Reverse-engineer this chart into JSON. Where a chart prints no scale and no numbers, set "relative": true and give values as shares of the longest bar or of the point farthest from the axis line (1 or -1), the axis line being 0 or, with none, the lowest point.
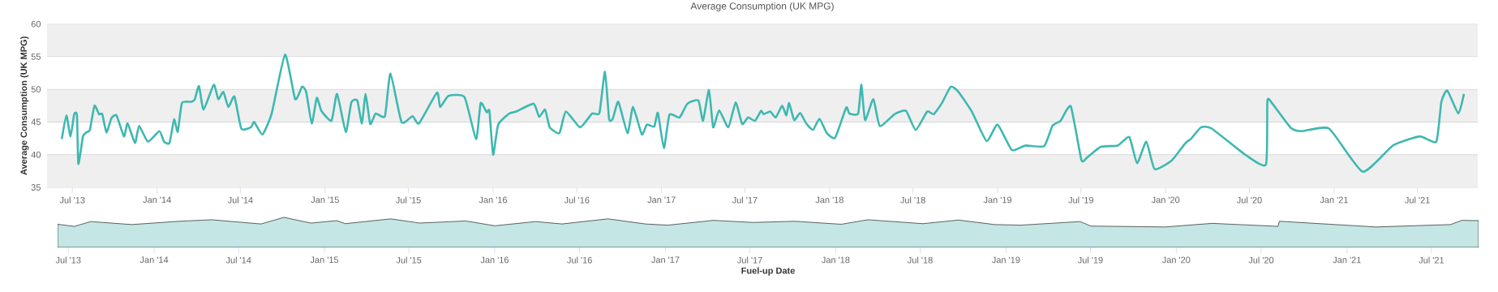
{
  "chart_data": [
    {
      "type": "line",
      "title": "Average Consumption (UK MPG)",
      "ylabel": "Average Consumption (UK MPG)",
      "x": [
        "2013-06-08",
        "2013-06-18",
        "2013-06-27",
        "2013-07-05",
        "2013-07-11",
        "2013-07-14",
        "2013-07-24",
        "2013-07-31",
        "2013-08-08",
        "2013-08-18",
        "2013-08-28",
        "2013-09-04",
        "2013-09-13",
        "2013-09-24",
        "2013-10-05",
        "2013-10-21",
        "2013-10-29",
        "2013-11-14",
        "2013-11-23",
        "2013-12-12",
        "2014-01-06",
        "2014-01-16",
        "2014-01-28",
        "2014-02-07",
        "2014-02-15",
        "2014-02-24",
        "2014-03-17",
        "2014-03-24",
        "2014-04-02",
        "2014-04-12",
        "2014-05-04",
        "2014-05-14",
        "2014-05-25",
        "2014-06-05",
        "2014-06-18",
        "2014-07-03",
        "2014-07-24",
        "2014-07-31",
        "2014-08-18",
        "2014-09-07",
        "2014-10-06",
        "2014-10-28",
        "2014-11-12",
        "2014-11-21",
        "2014-12-03",
        "2014-12-14",
        "2014-12-24",
        "2015-01-15",
        "2015-01-27",
        "2015-02-15",
        "2015-02-27",
        "2015-03-12",
        "2015-03-22",
        "2015-03-30",
        "2015-04-09",
        "2015-04-21",
        "2015-05-11",
        "2015-05-23",
        "2015-06-16",
        "2015-07-10",
        "2015-07-24",
        "2015-09-01",
        "2015-09-08",
        "2015-09-26",
        "2015-10-31",
        "2015-11-25",
        "2015-12-05",
        "2015-12-18",
        "2015-12-24",
        "2016-01-01",
        "2016-01-12",
        "2016-02-05",
        "2016-02-20",
        "2016-03-29",
        "2016-04-10",
        "2016-04-23",
        "2016-05-03",
        "2016-05-24",
        "2016-06-07",
        "2016-07-08",
        "2016-08-03",
        "2016-08-19",
        "2016-08-31",
        "2016-09-09",
        "2016-09-17",
        "2016-09-29",
        "2016-10-19",
        "2016-10-31",
        "2016-11-19",
        "2016-11-30",
        "2016-12-16",
        "2016-12-24",
        "2017-01-06",
        "2017-01-18",
        "2017-02-09",
        "2017-02-26",
        "2017-03-22",
        "2017-04-01",
        "2017-04-14",
        "2017-04-23",
        "2017-05-06",
        "2017-05-26",
        "2017-06-11",
        "2017-06-25",
        "2017-07-08",
        "2017-07-23",
        "2017-08-05",
        "2017-08-11",
        "2017-08-25",
        "2017-09-06",
        "2017-09-20",
        "2017-09-29",
        "2017-10-05",
        "2017-10-16",
        "2017-10-29",
        "2017-11-11",
        "2017-11-26",
        "2017-12-10",
        "2017-12-26",
        "2018-01-13",
        "2018-02-06",
        "2018-02-13",
        "2018-03-04",
        "2018-03-11",
        "2018-03-19",
        "2018-04-06",
        "2018-04-20",
        "2018-05-22",
        "2018-06-16",
        "2018-07-07",
        "2018-08-01",
        "2018-08-15",
        "2018-09-02",
        "2018-09-21",
        "2018-10-07",
        "2018-11-06",
        "2018-12-08",
        "2019-01-01",
        "2019-02-01",
        "2019-03-02",
        "2019-04-12",
        "2019-04-30",
        "2019-05-18",
        "2019-06-09",
        "2019-07-02",
        "2019-07-15",
        "2019-08-13",
        "2019-09-19",
        "2019-10-14",
        "2019-10-31",
        "2019-11-20",
        "2019-12-08",
        "2020-01-14",
        "2020-02-12",
        "2020-02-26",
        "2020-03-18",
        "2020-04-10",
        "2020-06-22",
        "2020-08-06",
        "2020-08-09",
        "2020-08-19",
        "2020-09-29",
        "2020-10-24",
        "2020-12-21",
        "2021-03-04",
        "2021-05-09",
        "2021-07-06",
        "2021-08-11",
        "2021-08-22",
        "2021-09-04",
        "2021-09-28",
        "2021-10-10"
      ],
      "series": [
        {
          "color": "#3db8b0",
          "values": [
            42.4,
            46.0,
            42.8,
            46.2,
            46.0,
            38.6,
            42.8,
            43.4,
            43.8,
            47.5,
            46.2,
            46.2,
            43.4,
            45.6,
            46.0,
            42.8,
            44.8,
            41.8,
            44.4,
            42.0,
            43.6,
            42.0,
            41.8,
            45.4,
            43.5,
            47.9,
            48.1,
            48.5,
            50.5,
            46.9,
            50.7,
            48.5,
            49.6,
            47.3,
            48.9,
            44.0,
            44.2,
            45.0,
            43.1,
            46.3,
            55.3,
            48.5,
            50.4,
            49.6,
            44.8,
            48.7,
            46.7,
            45.2,
            49.3,
            43.5,
            48.0,
            48.3,
            44.8,
            49.3,
            44.7,
            46.3,
            45.9,
            52.4,
            45.0,
            45.9,
            44.8,
            49.5,
            47.3,
            49.0,
            48.8,
            42.4,
            47.9,
            46.5,
            46.7,
            40.0,
            44.6,
            46.3,
            46.6,
            47.8,
            45.8,
            46.9,
            44.2,
            43.3,
            46.6,
            44.2,
            46.3,
            46.4,
            52.7,
            45.5,
            45.5,
            48.1,
            43.3,
            47.3,
            43.1,
            44.6,
            44.3,
            46.4,
            41.0,
            46.1,
            45.7,
            47.8,
            48.3,
            45.2,
            49.9,
            44.2,
            46.8,
            44.2,
            48.0,
            44.7,
            45.7,
            45.2,
            46.7,
            46.2,
            46.6,
            45.7,
            47.5,
            46.0,
            47.9,
            45.3,
            46.4,
            44.8,
            43.8,
            45.5,
            43.3,
            42.6,
            47.2,
            46.3,
            46.3,
            50.7,
            45.3,
            48.5,
            44.4,
            46.2,
            46.7,
            43.8,
            46.6,
            46.2,
            47.9,
            50.4,
            49.7,
            46.6,
            42.1,
            44.6,
            40.7,
            41.4,
            41.3,
            44.4,
            45.2,
            47.4,
            39.2,
            39.6,
            41.2,
            41.4,
            42.7,
            38.7,
            42.0,
            37.8,
            39.1,
            41.7,
            42.5,
            44.2,
            44.0,
            40.0,
            38.5,
            48.2,
            47.9,
            44.1,
            43.6,
            44.0,
            37.4,
            41.4,
            42.8,
            42.0,
            48.1,
            49.8,
            46.3,
            49.3
          ]
        }
      ],
      "xlim": [
        "2013-05-07",
        "2021-11-09"
      ],
      "ylim": [
        35,
        60
      ],
      "yticks": [
        35,
        40,
        45,
        50,
        55,
        60
      ],
      "xticks": [
        {
          "value": "2013-07-01",
          "label": "Jul '13"
        },
        {
          "value": "2014-01-01",
          "label": "Jan '14"
        },
        {
          "value": "2014-07-01",
          "label": "Jul '14"
        },
        {
          "value": "2015-01-01",
          "label": "Jan '15"
        },
        {
          "value": "2015-07-01",
          "label": "Jul '15"
        },
        {
          "value": "2016-01-01",
          "label": "Jan '16"
        },
        {
          "value": "2016-07-01",
          "label": "Jul '16"
        },
        {
          "value": "2017-01-01",
          "label": "Jan '17"
        },
        {
          "value": "2017-07-01",
          "label": "Jul '17"
        },
        {
          "value": "2018-01-01",
          "label": "Jan '18"
        },
        {
          "value": "2018-07-01",
          "label": "Jul '18"
        },
        {
          "value": "2019-01-01",
          "label": "Jan '19"
        },
        {
          "value": "2019-07-01",
          "label": "Jul '19"
        },
        {
          "value": "2020-01-01",
          "label": "Jan '20"
        },
        {
          "value": "2020-07-01",
          "label": "Jul '20"
        },
        {
          "value": "2021-01-01",
          "label": "Jan '21"
        },
        {
          "value": "2021-07-01",
          "label": "Jul '21"
        }
      ],
      "grid": "y",
      "bands": [
        {
          "axis": "y",
          "from": 35,
          "to": 40,
          "color": "#efefef"
        },
        {
          "axis": "y",
          "from": 45,
          "to": 50,
          "color": "#efefef"
        },
        {
          "axis": "y",
          "from": 55,
          "to": 60,
          "color": "#efefef"
        }
      ]
    },
    {
      "type": "area",
      "xlabel": "Fuel-up Date",
      "relative": true,
      "tick_labels": "x",
      "color": "#c4e6e4",
      "x": [
        "2013-06-08",
        "2013-07-14",
        "2013-08-18",
        "2013-11-14",
        "2014-02-24",
        "2014-05-04",
        "2014-08-18",
        "2014-10-06",
        "2014-12-03",
        "2015-01-27",
        "2015-02-15",
        "2015-05-23",
        "2015-07-24",
        "2015-10-31",
        "2016-01-01",
        "2016-03-29",
        "2016-05-24",
        "2016-08-31",
        "2016-11-19",
        "2017-01-06",
        "2017-04-14",
        "2017-07-08",
        "2017-10-05",
        "2018-01-13",
        "2018-03-11",
        "2018-07-07",
        "2018-09-21",
        "2018-12-08",
        "2019-02-01",
        "2019-06-09",
        "2019-07-02",
        "2019-12-08",
        "2020-03-18",
        "2020-08-06",
        "2020-08-09",
        "2021-03-04",
        "2021-08-11",
        "2021-09-04",
        "2021-10-10"
      ],
      "values": [
        0.77,
        0.7,
        0.86,
        0.76,
        0.87,
        0.92,
        0.78,
        1,
        0.81,
        0.89,
        0.79,
        0.95,
        0.81,
        0.88,
        0.72,
        0.86,
        0.78,
        0.95,
        0.78,
        0.74,
        0.9,
        0.83,
        0.87,
        0.77,
        0.92,
        0.79,
        0.91,
        0.76,
        0.74,
        0.86,
        0.71,
        0.68,
        0.8,
        0.7,
        0.87,
        0.68,
        0.76,
        0.9,
        0.89
      ],
      "xlim": [
        "2013-06-08",
        "2021-10-10"
      ],
      "xticks": [
        {
          "value": "2013-07-01",
          "label": "Jul '13"
        },
        {
          "value": "2014-01-01",
          "label": "Jan '14"
        },
        {
          "value": "2014-07-01",
          "label": "Jul '14"
        },
        {
          "value": "2015-01-01",
          "label": "Jan '15"
        },
        {
          "value": "2015-07-01",
          "label": "Jul '15"
        },
        {
          "value": "2016-01-01",
          "label": "Jan '16"
        },
        {
          "value": "2016-07-01",
          "label": "Jul '16"
        },
        {
          "value": "2017-01-01",
          "label": "Jan '17"
        },
        {
          "value": "2017-07-01",
          "label": "Jul '17"
        },
        {
          "value": "2018-01-01",
          "label": "Jan '18"
        },
        {
          "value": "2018-07-01",
          "label": "Jul '18"
        },
        {
          "value": "2019-01-01",
          "label": "Jan '19"
        },
        {
          "value": "2019-07-01",
          "label": "Jul '19"
        },
        {
          "value": "2020-01-01",
          "label": "Jan '20"
        },
        {
          "value": "2020-07-01",
          "label": "Jul '20"
        },
        {
          "value": "2021-01-01",
          "label": "Jan '21"
        },
        {
          "value": "2021-07-01",
          "label": "Jul '21"
        }
      ]
    }
  ]
}
